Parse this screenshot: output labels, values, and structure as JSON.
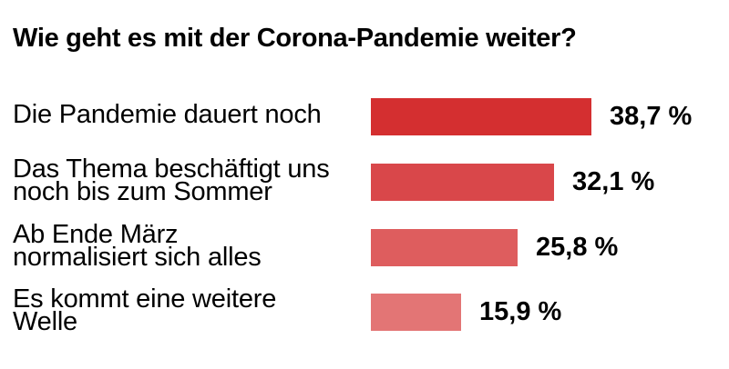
{
  "title": "Wie geht es mit der Corona-Pandemie weiter?",
  "chart_data": {
    "type": "bar",
    "orientation": "horizontal",
    "title": "Wie geht es mit der Corona-Pandemie weiter?",
    "categories": [
      "Die Pandemie dauert noch",
      "Das Thema beschäftigt uns noch bis zum Sommer",
      "Ab Ende März normalisiert sich alles",
      "Es kommt eine weitere Welle"
    ],
    "category_lines": [
      [
        "Die Pandemie dauert noch"
      ],
      [
        "Das Thema beschäftigt uns",
        "noch bis zum Sommer"
      ],
      [
        "Ab Ende März",
        "normalisiert sich alles"
      ],
      [
        "Es kommt eine weitere",
        "Welle"
      ]
    ],
    "values": [
      38.7,
      32.1,
      25.8,
      15.9
    ],
    "value_labels": [
      "38,7 %",
      "32,1 %",
      "25,8 %",
      "15,9 %"
    ],
    "colors": [
      "#d42f30",
      "#d9474a",
      "#de5d5e",
      "#e37575"
    ],
    "xlim": [
      0,
      38.7
    ],
    "grid": false,
    "legend": "none"
  }
}
